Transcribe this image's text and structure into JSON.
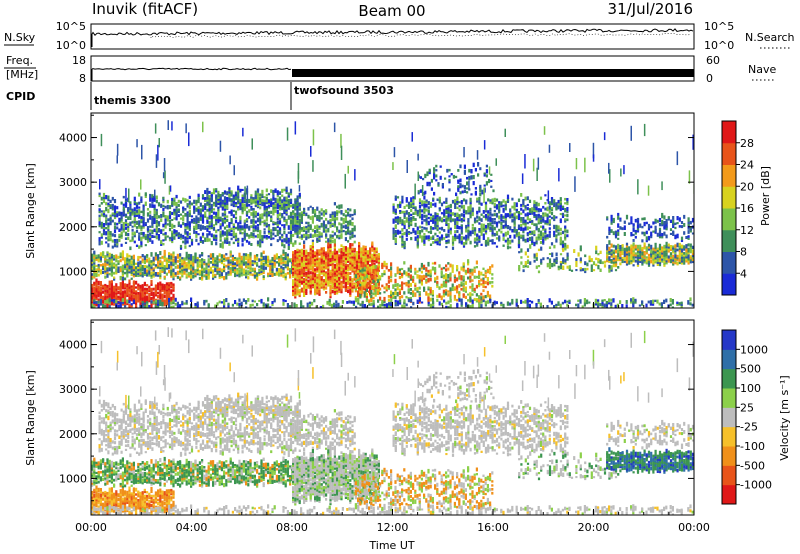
{
  "header": {
    "station": "Inuvik (fitACF)",
    "beam": "Beam 00",
    "date": "31/Jul/2016"
  },
  "strips": {
    "nsky_label": "N.Sky",
    "nsky_ticks": [
      "10^5",
      "10^0"
    ],
    "nsearch_label": "N.Search",
    "nsearch_ticks": [
      "10^5",
      "10^0"
    ],
    "freq_label_line1": "Freq.",
    "freq_label_line2": "[MHz]",
    "freq_ticks": [
      "18",
      "8"
    ],
    "nave_label": "Nave",
    "nave_ticks": [
      "60",
      "0"
    ],
    "cpid_label": "CPID",
    "cpid_modes": [
      {
        "name": "themis 3300",
        "start_hour": 0.0
      },
      {
        "name": "twofsound 3503",
        "start_hour": 8.0
      }
    ]
  },
  "chart_data": [
    {
      "type": "heatmap",
      "title": "",
      "xlabel": "Time UT",
      "ylabel": "Slant Range [km]",
      "x_ticks": [
        "00:00",
        "04:00",
        "08:00",
        "12:00",
        "16:00",
        "20:00",
        "00:00"
      ],
      "x_range_hours": [
        0,
        24
      ],
      "y_ticks": [
        "1000",
        "2000",
        "3000",
        "4000"
      ],
      "ylim": [
        180,
        4550
      ],
      "colorbar_label": "Power [dB]",
      "colorbar_ticks": [
        "4",
        "8",
        "12",
        "16",
        "20",
        "24",
        "28"
      ],
      "colorbar_range": [
        0,
        30
      ],
      "colors": [
        "#1a2bd6",
        "#2d55a8",
        "#3f8f5a",
        "#7cc24a",
        "#d8d21f",
        "#f39a1a",
        "#e8541a",
        "#e01818"
      ]
    },
    {
      "type": "heatmap",
      "title": "",
      "xlabel": "Time UT",
      "ylabel": "Slant Range [km]",
      "x_ticks": [
        "00:00",
        "04:00",
        "08:00",
        "12:00",
        "16:00",
        "20:00",
        "00:00"
      ],
      "x_range_hours": [
        0,
        24
      ],
      "y_ticks": [
        "1000",
        "2000",
        "3000",
        "4000"
      ],
      "ylim": [
        180,
        4550
      ],
      "colorbar_label": "Velocity [m s⁻¹]",
      "colorbar_ticks": [
        "1000",
        "500",
        "100",
        "25",
        "-25",
        "-100",
        "-500",
        "-1000"
      ],
      "colors": [
        "#2538c8",
        "#2f6fa8",
        "#3c9650",
        "#8cd04a",
        "#bdbdbd",
        "#f6c02a",
        "#f0901a",
        "#e8541a",
        "#e01818"
      ]
    }
  ]
}
